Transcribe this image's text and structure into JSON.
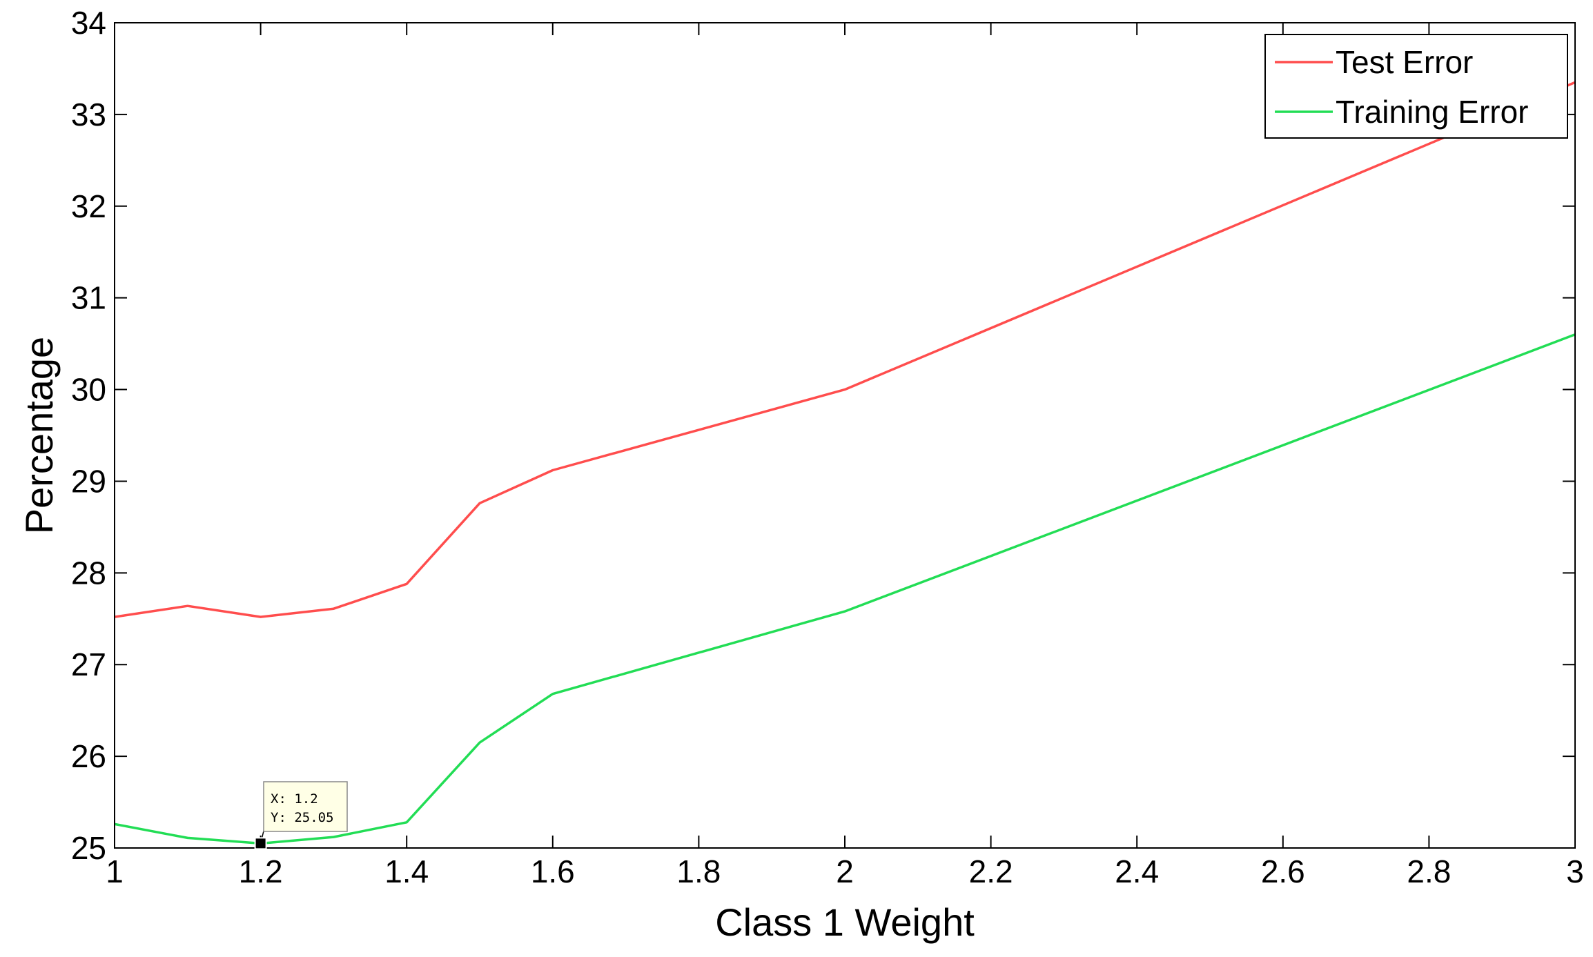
{
  "chart_data": {
    "type": "line",
    "title": "",
    "xlabel": "Class 1 Weight",
    "ylabel": "Percentage",
    "xlim": [
      1,
      3
    ],
    "ylim": [
      25,
      34
    ],
    "xticks": [
      1,
      1.2,
      1.4,
      1.6,
      1.8,
      2,
      2.2,
      2.4,
      2.6,
      2.8,
      3
    ],
    "xtick_labels": [
      "1",
      "1.2",
      "1.4",
      "1.6",
      "1.8",
      "2",
      "2.2",
      "2.4",
      "2.6",
      "2.8",
      "3"
    ],
    "yticks": [
      25,
      26,
      27,
      28,
      29,
      30,
      31,
      32,
      33,
      34
    ],
    "ytick_labels": [
      "25",
      "26",
      "27",
      "28",
      "29",
      "30",
      "31",
      "32",
      "33",
      "34"
    ],
    "grid": false,
    "legend_position": "top-right",
    "series": [
      {
        "name": "Test Error",
        "color": "#ff4d4d",
        "x": [
          1,
          1.1,
          1.2,
          1.3,
          1.4,
          1.5,
          1.6,
          2,
          3
        ],
        "y": [
          27.52,
          27.64,
          27.52,
          27.61,
          27.88,
          28.76,
          29.12,
          30.0,
          33.35
        ]
      },
      {
        "name": "Training Error",
        "color": "#22dd55",
        "x": [
          1,
          1.1,
          1.2,
          1.3,
          1.4,
          1.5,
          1.6,
          2,
          3
        ],
        "y": [
          25.26,
          25.11,
          25.05,
          25.12,
          25.28,
          26.15,
          26.68,
          27.58,
          30.6
        ]
      }
    ],
    "datatip": {
      "x": 1.2,
      "y": 25.05,
      "line1": "X: 1.2",
      "line2": "Y: 25.05"
    }
  }
}
